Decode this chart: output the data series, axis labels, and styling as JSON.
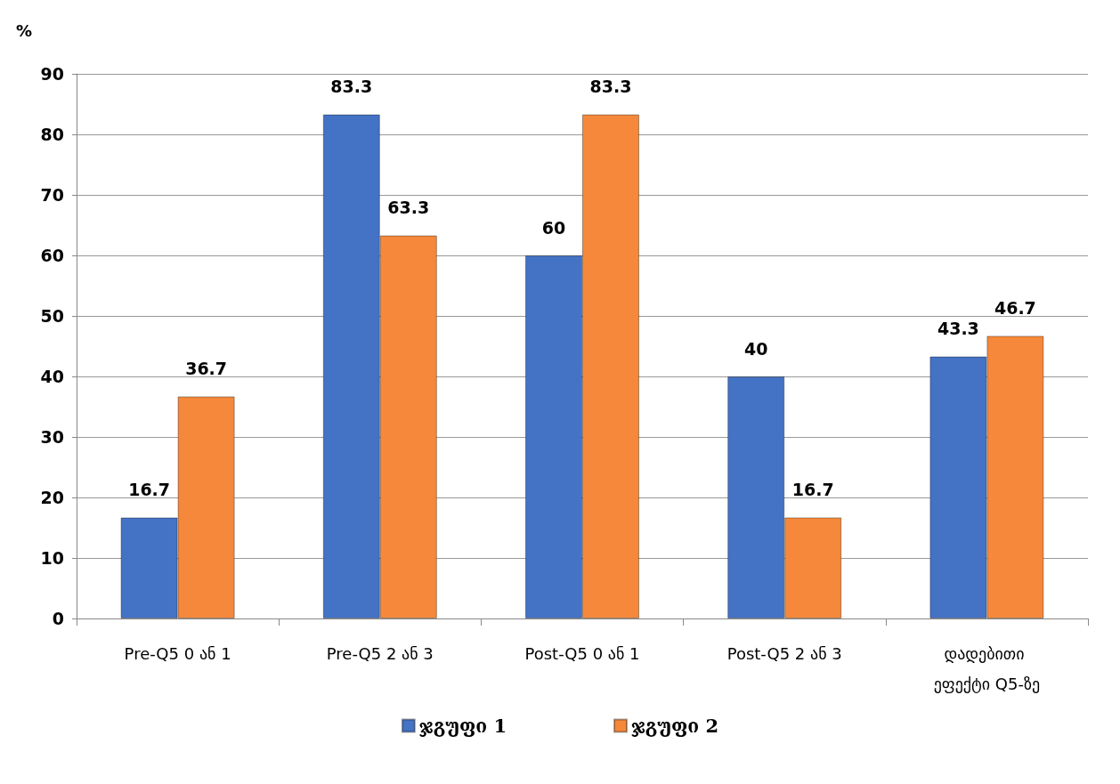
{
  "chart_data": {
    "type": "bar",
    "ylabel": "%",
    "categories": [
      "Pre-Q5 0 ან 1",
      "Pre-Q5 2 ან 3",
      "Post-Q5 0 ან 1",
      "Post-Q5 2 ან 3",
      "დადებითი ეფექტი Q5-ზე"
    ],
    "series": [
      {
        "name": "ჯგუფი 1",
        "color": "#4472c4",
        "values": [
          16.7,
          83.3,
          60,
          40,
          43.3
        ]
      },
      {
        "name": "ჯგუფი 2",
        "color": "#f5883a",
        "values": [
          36.7,
          63.3,
          83.3,
          16.7,
          46.7
        ]
      }
    ],
    "ylim": [
      0,
      90
    ],
    "yticks": [
      0,
      10,
      20,
      30,
      40,
      50,
      60,
      70,
      80,
      90
    ],
    "grid": "y",
    "legend": "bottom",
    "data_labels": true
  }
}
